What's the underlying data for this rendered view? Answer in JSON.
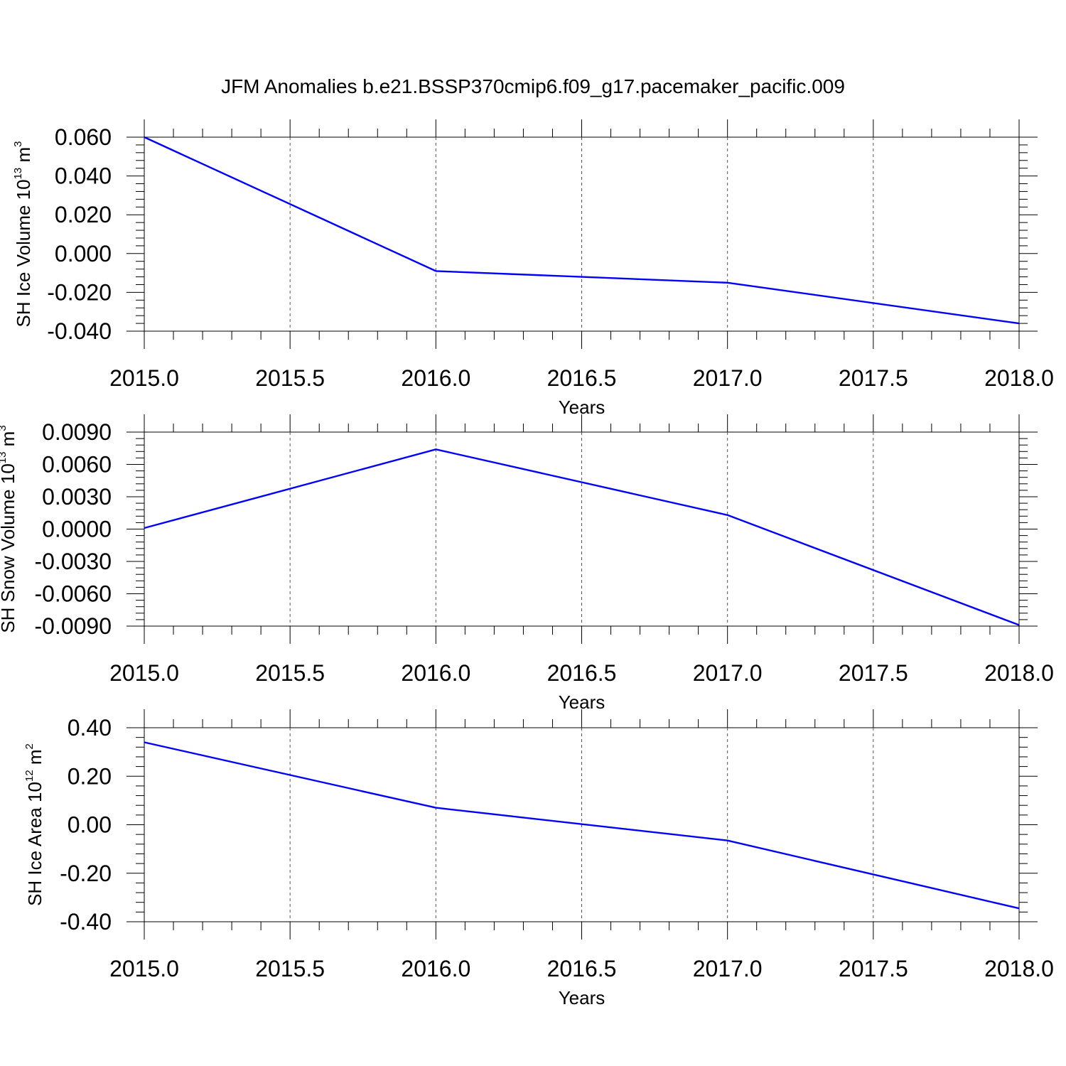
{
  "title": "JFM Anomalies b.e21.BSSP370cmip6.f09_g17.pacemaker_pacific.009",
  "colors": {
    "line": "#0000ff",
    "axis": "#000000",
    "grid": "#555555"
  },
  "chart_data": [
    {
      "type": "line",
      "xlabel": "Years",
      "ylabel": {
        "text": "SH Ice Volume 10",
        "sup1": "13",
        "mid": " m",
        "sup2": "3"
      },
      "xlim": [
        2015.0,
        2018.0
      ],
      "ylim": [
        -0.04,
        0.06
      ],
      "xticks": [
        "2015.0",
        "2015.5",
        "2016.0",
        "2016.5",
        "2017.0",
        "2017.5",
        "2018.0"
      ],
      "yticks": [
        "-0.040",
        "-0.020",
        "0.000",
        "0.020",
        "0.040",
        "0.060"
      ],
      "x": [
        2015,
        2016,
        2017,
        2018
      ],
      "y": [
        0.06,
        -0.009,
        -0.015,
        -0.036
      ]
    },
    {
      "type": "line",
      "xlabel": "Years",
      "ylabel": {
        "text": "SH Snow Volume 10",
        "sup1": "13",
        "mid": " m",
        "sup2": "3"
      },
      "xlim": [
        2015.0,
        2018.0
      ],
      "ylim": [
        -0.009,
        0.009
      ],
      "xticks": [
        "2015.0",
        "2015.5",
        "2016.0",
        "2016.5",
        "2017.0",
        "2017.5",
        "2018.0"
      ],
      "yticks": [
        "-0.0090",
        "-0.0060",
        "-0.0030",
        "0.0000",
        "0.0030",
        "0.0060",
        "0.0090"
      ],
      "x": [
        2015,
        2016,
        2017,
        2018
      ],
      "y": [
        0.0001,
        0.0074,
        0.0013,
        -0.0089
      ]
    },
    {
      "type": "line",
      "xlabel": "Years",
      "ylabel": {
        "text": "SH Ice Area 10",
        "sup1": "12",
        "mid": " m",
        "sup2": "2"
      },
      "xlim": [
        2015.0,
        2018.0
      ],
      "ylim": [
        -0.4,
        0.4
      ],
      "xticks": [
        "2015.0",
        "2015.5",
        "2016.0",
        "2016.5",
        "2017.0",
        "2017.5",
        "2018.0"
      ],
      "yticks": [
        "-0.40",
        "-0.20",
        "0.00",
        "0.20",
        "0.40"
      ],
      "x": [
        2015,
        2016,
        2017,
        2018
      ],
      "y": [
        0.34,
        0.07,
        -0.065,
        -0.345
      ]
    }
  ]
}
